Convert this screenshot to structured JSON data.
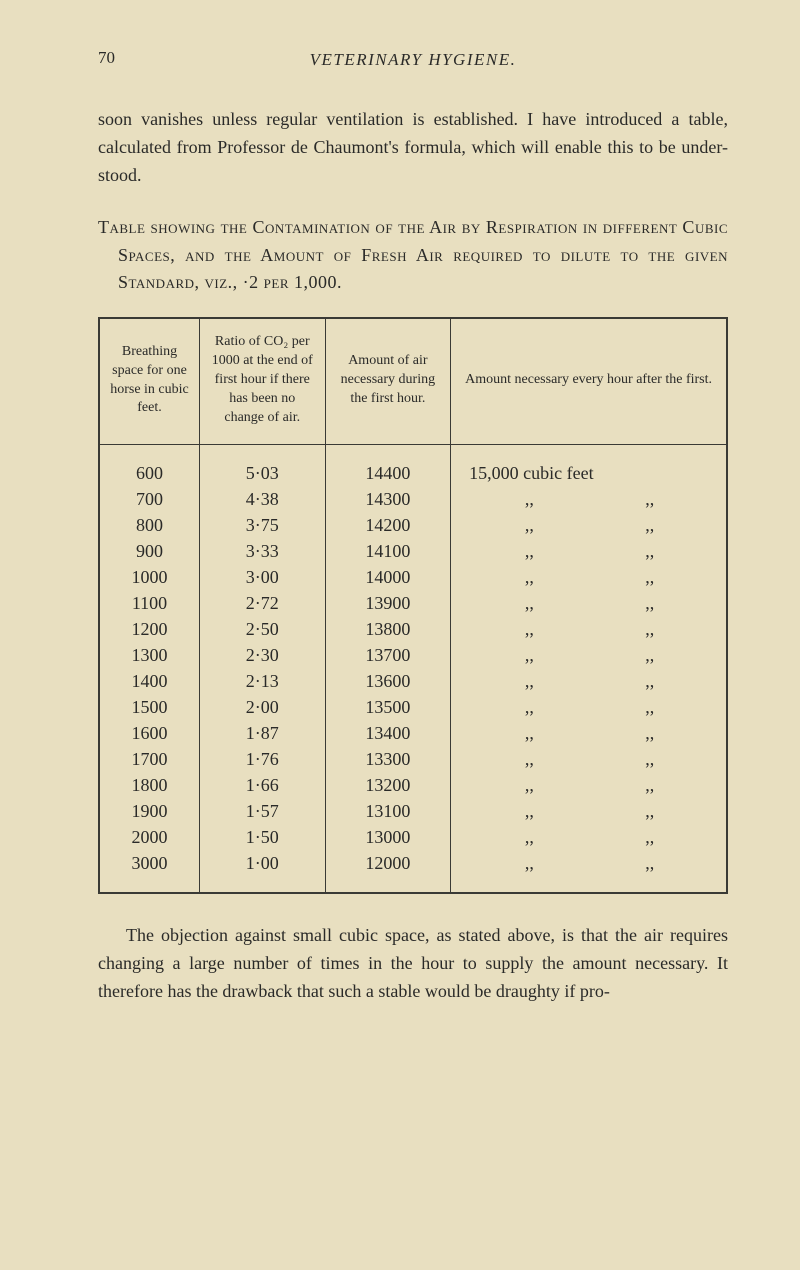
{
  "page_number": "70",
  "running_header": "VETERINARY HYGIENE.",
  "intro_text": "soon vanishes unless regular ventilation is established. I have introduced a table, calculated from Professor de Chaumont's formula, which will enable this to be under-stood.",
  "table_title_parts": {
    "p1": "Table showing the Contamination of the Air by Respiration in different Cubic Spaces, and the Amount of Fresh Air required to dilute to the given Standard, viz., ·2 per 1,000."
  },
  "headers": {
    "h1": "Breathing space for one horse in cubic feet.",
    "h2": "Ratio of CO₂ per 1000 at the end of first hour if there has been no change of air.",
    "h3": "Amount of air necessary during the first hour.",
    "h4": "Amount necessary every hour after the first."
  },
  "rows": [
    {
      "c1": "600",
      "c2": "5·03",
      "c3": "14400",
      "c4": "15,000 cubic feet"
    },
    {
      "c1": "700",
      "c2": "4·38",
      "c3": "14300",
      "c4": ",,          ,,"
    },
    {
      "c1": "800",
      "c2": "3·75",
      "c3": "14200",
      "c4": ",,          ,,"
    },
    {
      "c1": "900",
      "c2": "3·33",
      "c3": "14100",
      "c4": ",,          ,,"
    },
    {
      "c1": "1000",
      "c2": "3·00",
      "c3": "14000",
      "c4": ",,          ,,"
    },
    {
      "c1": "1100",
      "c2": "2·72",
      "c3": "13900",
      "c4": ",,          ,,"
    },
    {
      "c1": "1200",
      "c2": "2·50",
      "c3": "13800",
      "c4": ",,          ,,"
    },
    {
      "c1": "1300",
      "c2": "2·30",
      "c3": "13700",
      "c4": ",,          ,,"
    },
    {
      "c1": "1400",
      "c2": "2·13",
      "c3": "13600",
      "c4": ",,          ,,"
    },
    {
      "c1": "1500",
      "c2": "2·00",
      "c3": "13500",
      "c4": ",,          ,,"
    },
    {
      "c1": "1600",
      "c2": "1·87",
      "c3": "13400",
      "c4": ",,          ,,"
    },
    {
      "c1": "1700",
      "c2": "1·76",
      "c3": "13300",
      "c4": ",,          ,,"
    },
    {
      "c1": "1800",
      "c2": "1·66",
      "c3": "13200",
      "c4": ",,          ,,"
    },
    {
      "c1": "1900",
      "c2": "1·57",
      "c3": "13100",
      "c4": ",,          ,,"
    },
    {
      "c1": "2000",
      "c2": "1·50",
      "c3": "13000",
      "c4": ",,          ,,"
    },
    {
      "c1": "3000",
      "c2": "1·00",
      "c3": "12000",
      "c4": ",,          ,,"
    }
  ],
  "closing_text": "The objection against small cubic space, as stated above, is that the air requires changing a large number of times in the hour to supply the amount necessary. It therefore has the drawback that such a stable would be draughty if pro-",
  "styling": {
    "background_color": "#e8dfc0",
    "text_color": "#2a2a28",
    "border_color": "#3a3a35",
    "body_fontsize": 18,
    "header_fontsize": 14,
    "running_header_fontsize": 17,
    "table_border_width": 2,
    "inner_border_width": 1,
    "col_widths_pct": [
      16,
      20,
      20,
      44
    ]
  }
}
